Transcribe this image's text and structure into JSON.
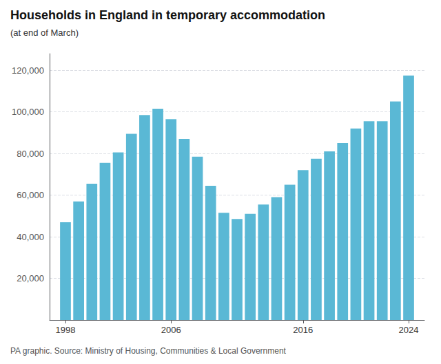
{
  "chart_data": {
    "type": "bar",
    "title": "Households in England in temporary accommodation",
    "subtitle": "(at end of March)",
    "annotations": [
      "PA graphic. Source: Ministry of Housing, Communities & Local Government"
    ],
    "x": [
      1998,
      1999,
      2000,
      2001,
      2002,
      2003,
      2004,
      2005,
      2006,
      2007,
      2008,
      2009,
      2010,
      2011,
      2012,
      2013,
      2014,
      2015,
      2016,
      2017,
      2018,
      2019,
      2020,
      2021,
      2022,
      2023,
      2024
    ],
    "values": [
      47000,
      57000,
      65500,
      75500,
      80500,
      89500,
      98500,
      101500,
      96500,
      87000,
      78500,
      64500,
      51500,
      48500,
      51000,
      55500,
      59000,
      65000,
      72000,
      77500,
      81000,
      85000,
      92000,
      95500,
      95500,
      105000,
      117500
    ],
    "color": "#5ab8d5",
    "xlim": [
      1996.8,
      2025.2
    ],
    "xticks": [
      1998,
      2006,
      2016,
      2024
    ],
    "ylim": [
      0,
      128000
    ],
    "yticks": [
      {
        "value": 20000,
        "label": "20,000"
      },
      {
        "value": 40000,
        "label": "40,000"
      },
      {
        "value": 60000,
        "label": "60,000"
      },
      {
        "value": 80000,
        "label": "80,000"
      },
      {
        "value": 100000,
        "label": "100,000"
      },
      {
        "value": 120000,
        "label": "120,000"
      }
    ],
    "grid": true
  }
}
